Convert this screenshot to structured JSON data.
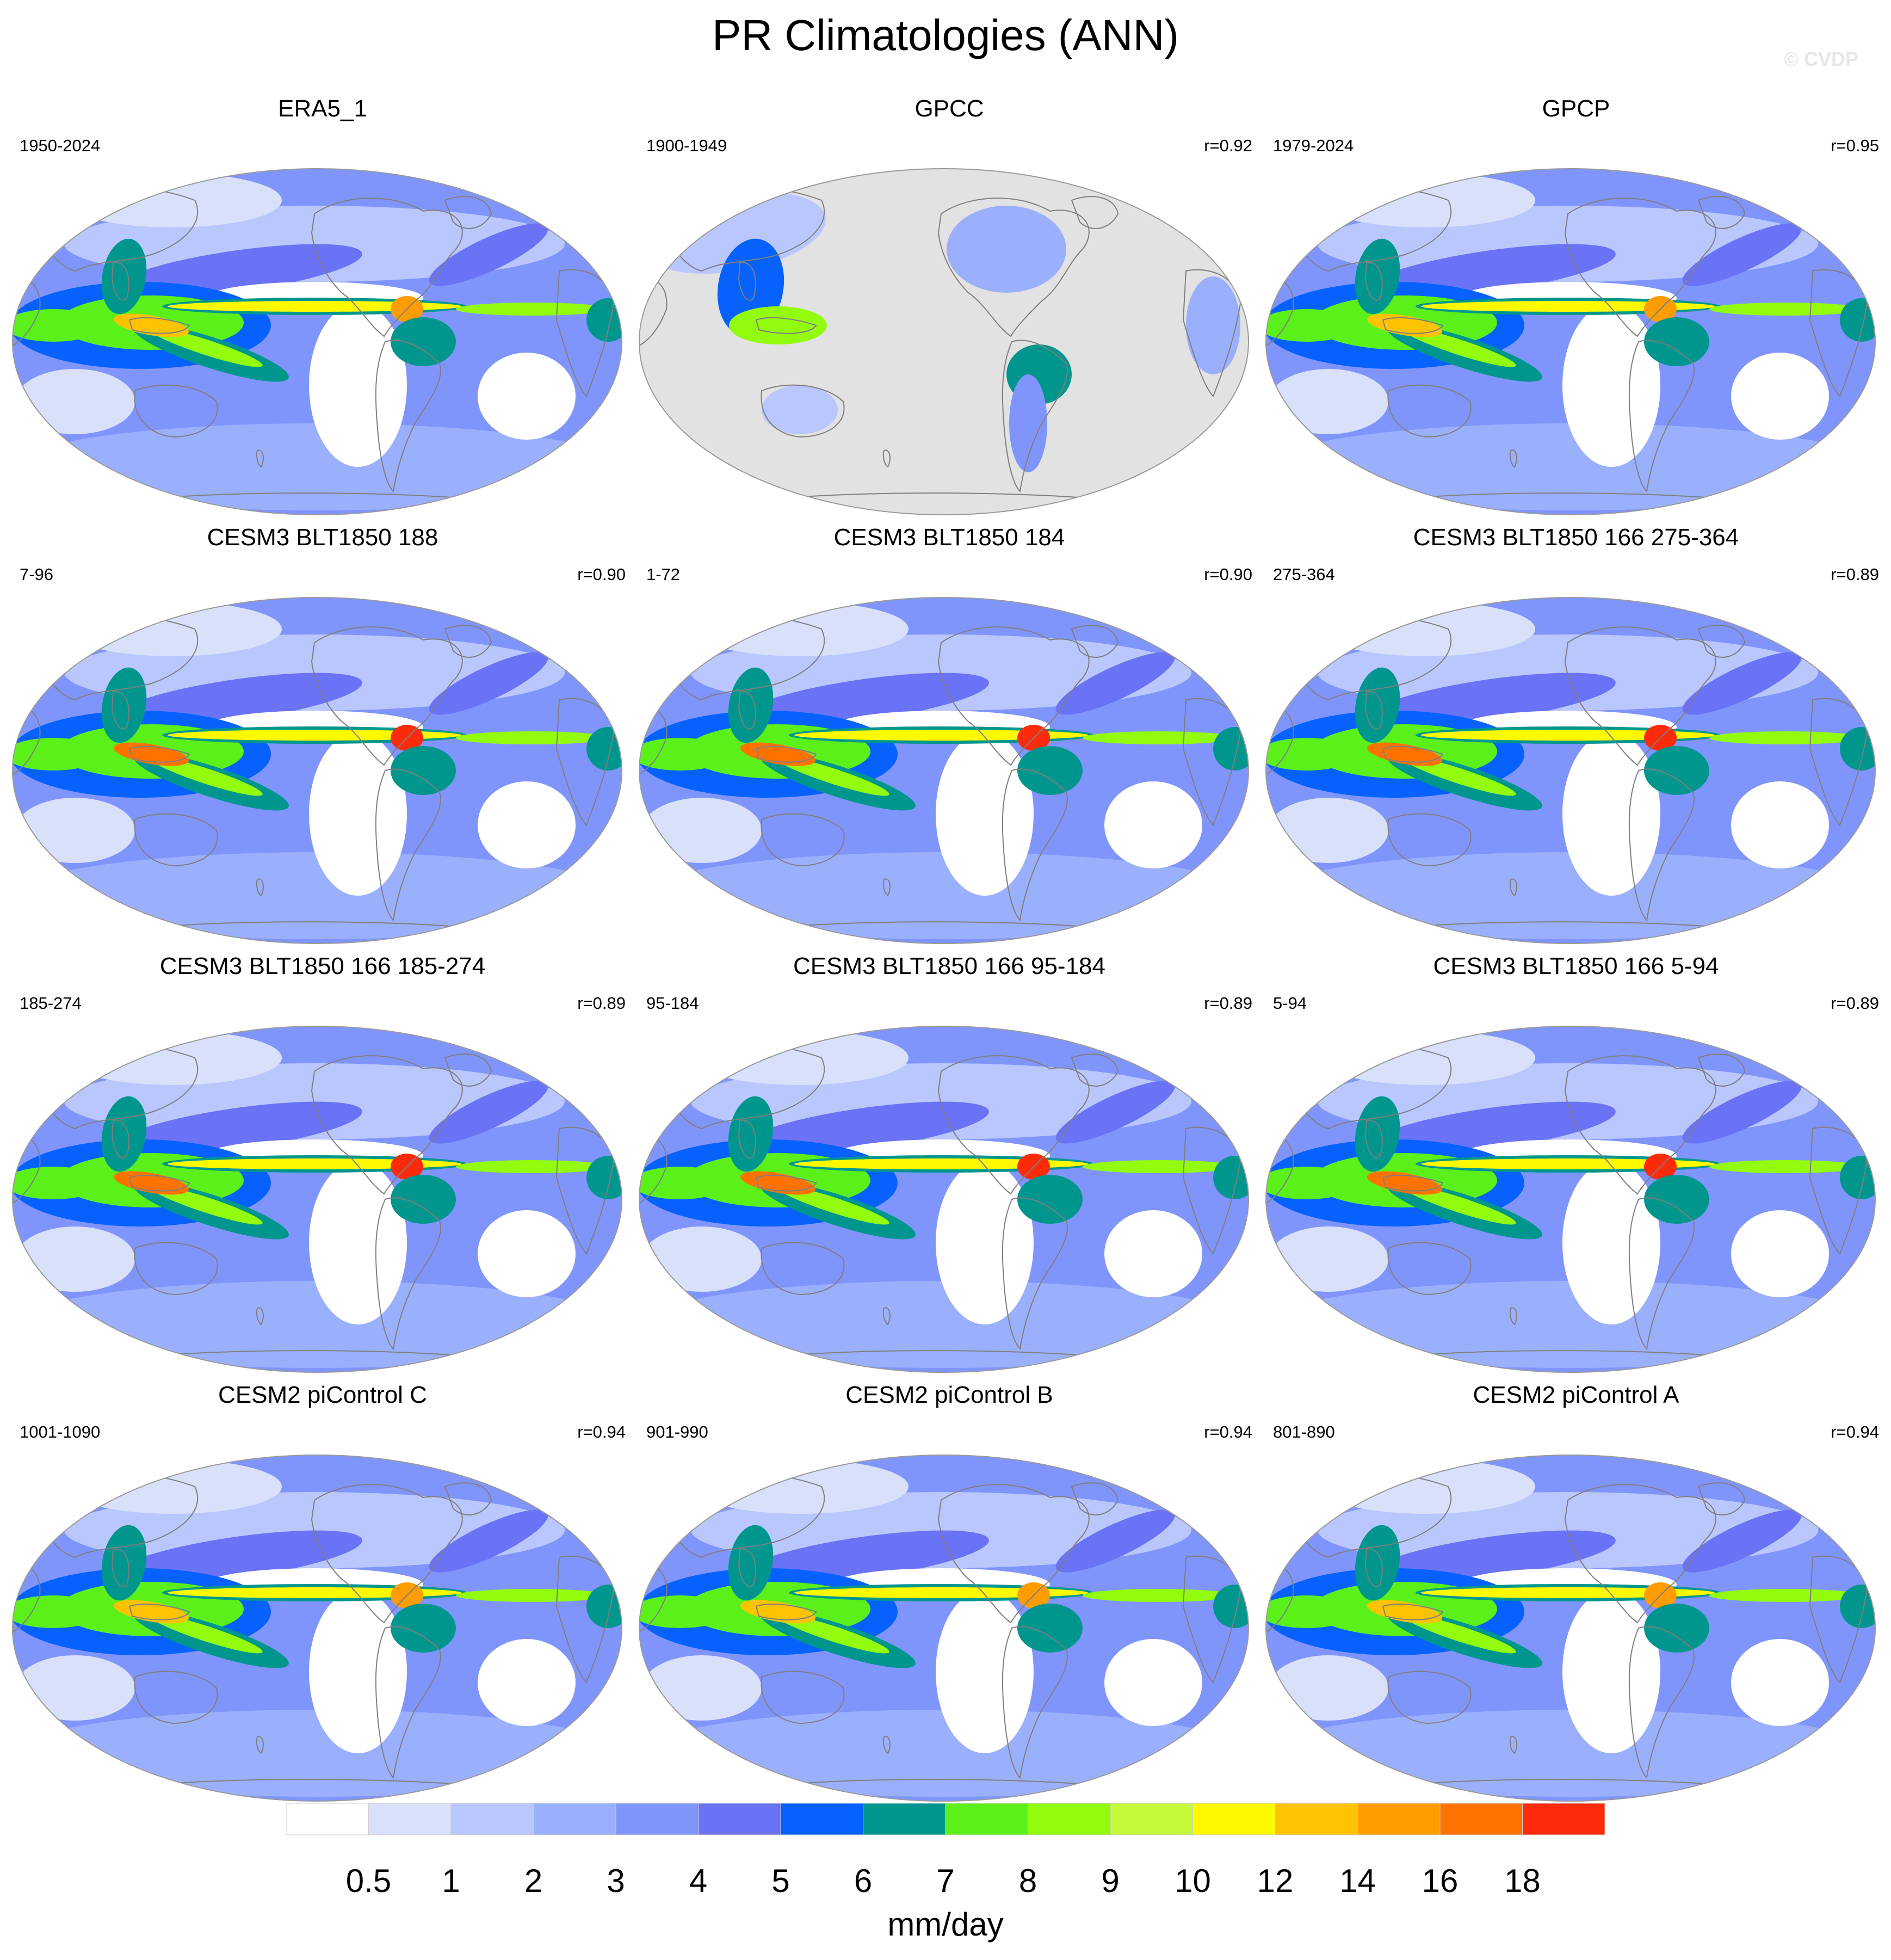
{
  "title": "PR Climatologies (ANN)",
  "watermark": "© CVDP",
  "panels": [
    {
      "title": "ERA5_1",
      "period": "1950-2024",
      "r": "",
      "style": "obs"
    },
    {
      "title": "GPCC",
      "period": "1900-1949",
      "r": "r=0.92",
      "style": "land"
    },
    {
      "title": "GPCP",
      "period": "1979-2024",
      "r": "r=0.95",
      "style": "obs"
    },
    {
      "title": "CESM3 BLT1850 188",
      "period": "7-96",
      "r": "r=0.90",
      "style": "cesm3"
    },
    {
      "title": "CESM3 BLT1850 184",
      "period": "1-72",
      "r": "r=0.90",
      "style": "cesm3"
    },
    {
      "title": "CESM3 BLT1850 166 275-364",
      "period": "275-364",
      "r": "r=0.89",
      "style": "cesm3"
    },
    {
      "title": "CESM3 BLT1850 166 185-274",
      "period": "185-274",
      "r": "r=0.89",
      "style": "cesm3"
    },
    {
      "title": "CESM3 BLT1850 166 95-184",
      "period": "95-184",
      "r": "r=0.89",
      "style": "cesm3"
    },
    {
      "title": "CESM3 BLT1850 166 5-94",
      "period": "5-94",
      "r": "r=0.89",
      "style": "cesm3"
    },
    {
      "title": "CESM2 piControl C",
      "period": "1001-1090",
      "r": "r=0.94",
      "style": "cesm2"
    },
    {
      "title": "CESM2 piControl B",
      "period": "901-990",
      "r": "r=0.94",
      "style": "cesm2"
    },
    {
      "title": "CESM2 piControl A",
      "period": "801-890",
      "r": "r=0.94",
      "style": "cesm2"
    }
  ],
  "colorbar": {
    "levels": [
      "0.5",
      "1",
      "2",
      "3",
      "4",
      "5",
      "6",
      "7",
      "8",
      "9",
      "10",
      "12",
      "14",
      "16",
      "18"
    ],
    "colors": [
      "#ffffff",
      "#d8e0fa",
      "#b9c7fc",
      "#9bb0fc",
      "#8095fb",
      "#6a73f5",
      "#0762fd",
      "#00968e",
      "#5cf01a",
      "#92fb0e",
      "#c5fa3a",
      "#fdfa00",
      "#fdc300",
      "#fe9c00",
      "#fe7300",
      "#fe2a0a"
    ],
    "units": "mm/day"
  },
  "map_colors": {
    "land_missing": "#e2e2e2",
    "coastline": "#7f7f7f",
    "border": "#9a9a9a"
  }
}
